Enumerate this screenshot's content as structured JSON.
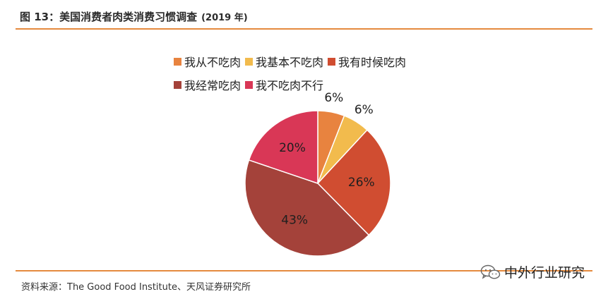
{
  "header": {
    "title": "图 13：美国消费者肉类消费习惯调查",
    "year": "(2019 年)"
  },
  "footer": {
    "source": "资料来源：The Good Food Institute、天风证券研究所",
    "watermark": "中外行业研究",
    "watermark_icon": "wechat-icon"
  },
  "chart_data": {
    "type": "pie",
    "title": "图 13：美国消费者肉类消费习惯调查 (2019 年)",
    "legend_position": "top",
    "slices": [
      {
        "name": "我从不吃肉",
        "value": 6,
        "label": "6%",
        "color": "#e8833f"
      },
      {
        "name": "我基本不吃肉",
        "value": 6,
        "label": "6%",
        "color": "#f2bb4d"
      },
      {
        "name": "我有时候吃肉",
        "value": 26,
        "label": "26%",
        "color": "#d04d31"
      },
      {
        "name": "我经常吃肉",
        "value": 43,
        "label": "43%",
        "color": "#a4423a"
      },
      {
        "name": "我不吃肉不行",
        "value": 20,
        "label": "20%",
        "color": "#d93756"
      }
    ]
  }
}
